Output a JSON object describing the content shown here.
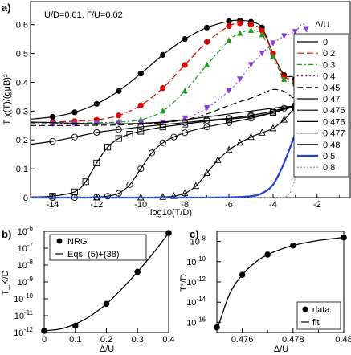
{
  "chart_data": [
    {
      "panel_label": "a)",
      "type": "line",
      "annotation": "U/D=0.01, Γ/U=0.02",
      "xlabel": "log10(T/D)",
      "ylabel": "T χ(T)/(gμB)²",
      "xlim": [
        -15,
        -0.5
      ],
      "ylim": [
        0,
        0.68
      ],
      "xticks": [
        -14,
        -12,
        -10,
        -8,
        -6,
        -4,
        -2
      ],
      "yticks": [
        0,
        0.1,
        0.2,
        0.3,
        0.4,
        0.5,
        0.6
      ],
      "legend_title": "Δ/U",
      "legend_position": "right",
      "series": [
        {
          "name": "0",
          "color": "#000000",
          "dash": "",
          "marker": "circle-filled",
          "x": [
            -15,
            -14,
            -13,
            -12,
            -11,
            -10,
            -9,
            -8,
            -7,
            -6,
            -5.5,
            -5,
            -4.5,
            -4,
            -3.5,
            -3,
            -2.5,
            -2,
            -1.5,
            -1,
            -0.5
          ],
          "y": [
            0.272,
            0.28,
            0.296,
            0.325,
            0.37,
            0.43,
            0.495,
            0.55,
            0.59,
            0.612,
            0.615,
            0.61,
            0.59,
            0.5,
            0.425,
            0.41,
            0.3,
            0.26,
            0.255,
            0.252,
            0.25
          ]
        },
        {
          "name": "0.2",
          "color": "#e00000",
          "dash": "8,4",
          "marker": "circle-filled",
          "x": [
            -15,
            -14,
            -13,
            -12,
            -11,
            -10,
            -9,
            -8,
            -7,
            -6,
            -5.5,
            -5,
            -4.5,
            -4,
            -3.5,
            -3,
            -2.5,
            -2,
            -1.5,
            -1,
            -0.5
          ],
          "y": [
            0.26,
            0.262,
            0.265,
            0.27,
            0.285,
            0.32,
            0.38,
            0.46,
            0.54,
            0.595,
            0.605,
            0.6,
            0.58,
            0.5,
            0.42,
            0.4,
            0.29,
            0.26,
            0.255,
            0.252,
            0.25
          ]
        },
        {
          "name": "0.3",
          "color": "#1a9a1a",
          "dash": "6,3,2,3",
          "marker": "triangle-filled",
          "x": [
            -15,
            -14,
            -13,
            -12,
            -11,
            -10,
            -9,
            -8,
            -7,
            -6,
            -5.5,
            -5,
            -4.5,
            -4,
            -3.5,
            -3,
            -2.5,
            -2,
            -1.5,
            -1,
            -0.5
          ],
          "y": [
            0.257,
            0.257,
            0.258,
            0.26,
            0.262,
            0.27,
            0.3,
            0.37,
            0.46,
            0.545,
            0.57,
            0.58,
            0.565,
            0.49,
            0.41,
            0.395,
            0.29,
            0.26,
            0.255,
            0.252,
            0.25
          ]
        },
        {
          "name": "0.4",
          "color": "#8a3ad8",
          "dash": "2,3",
          "marker": "triangle-down-filled",
          "x": [
            -15,
            -14,
            -13,
            -12,
            -11,
            -10,
            -9,
            -8,
            -7,
            -6,
            -5.5,
            -5,
            -4.5,
            -4,
            -3.5,
            -3,
            -2.5,
            -2,
            -1.5,
            -1,
            -0.5
          ],
          "y": [
            0.255,
            0.255,
            0.255,
            0.256,
            0.256,
            0.257,
            0.26,
            0.275,
            0.31,
            0.37,
            0.41,
            0.46,
            0.5,
            0.535,
            0.56,
            0.575,
            0.585,
            0.3,
            0.262,
            0.255,
            0.252
          ]
        },
        {
          "name": "0.45",
          "color": "#000000",
          "dash": "7,4",
          "marker": "",
          "x": [
            -15,
            -14,
            -13,
            -12,
            -11,
            -10,
            -9,
            -8,
            -7,
            -6,
            -5,
            -4.5,
            -4,
            -3.5,
            -3,
            -2.5,
            -2,
            -1.5,
            -1,
            -0.5
          ],
          "y": [
            0.25,
            0.25,
            0.25,
            0.251,
            0.252,
            0.255,
            0.26,
            0.27,
            0.29,
            0.32,
            0.345,
            0.36,
            0.375,
            0.368,
            0.34,
            0.3,
            0.27,
            0.258,
            0.253,
            0.25
          ]
        },
        {
          "name": "0.47",
          "color": "#000000",
          "dash": "",
          "marker": "",
          "x": [
            -15,
            -14,
            -13,
            -12,
            -11,
            -10,
            -9,
            -8,
            -7,
            -6,
            -5,
            -4,
            -3.5,
            -3,
            -2.5,
            -2,
            -1.5,
            -1,
            -0.5
          ],
          "y": [
            0.262,
            0.26,
            0.258,
            0.256,
            0.256,
            0.258,
            0.262,
            0.27,
            0.28,
            0.29,
            0.3,
            0.31,
            0.315,
            0.315,
            0.3,
            0.27,
            0.258,
            0.253,
            0.25
          ]
        },
        {
          "name": "0.475",
          "color": "#000000",
          "dash": "",
          "marker": "circle-open",
          "x": [
            -15,
            -14,
            -13,
            -12,
            -11,
            -10,
            -9,
            -8,
            -7,
            -6,
            -5,
            -4,
            -3.5,
            -3,
            -2.5,
            -2,
            -1.5,
            -1,
            -0.5
          ],
          "y": [
            0.185,
            0.195,
            0.21,
            0.226,
            0.236,
            0.245,
            0.253,
            0.26,
            0.268,
            0.275,
            0.285,
            0.3,
            0.31,
            0.315,
            0.305,
            0.27,
            0.258,
            0.253,
            0.25
          ]
        },
        {
          "name": "0.476",
          "color": "#000000",
          "dash": "",
          "marker": "square-open",
          "x": [
            -15,
            -14,
            -13,
            -12.5,
            -12,
            -11.5,
            -11,
            -10.5,
            -10,
            -9,
            -8,
            -7,
            -6,
            -5,
            -4,
            -3,
            -2.5,
            -2,
            -1.5,
            -1,
            -0.5
          ],
          "y": [
            0.002,
            0.005,
            0.02,
            0.055,
            0.12,
            0.175,
            0.205,
            0.22,
            0.23,
            0.245,
            0.255,
            0.265,
            0.272,
            0.28,
            0.295,
            0.315,
            0.31,
            0.27,
            0.258,
            0.253,
            0.25
          ]
        },
        {
          "name": "0.477",
          "color": "#000000",
          "dash": "",
          "marker": "circle-open",
          "x": [
            -15,
            -14,
            -13,
            -12,
            -11.5,
            -11,
            -10.5,
            -10,
            -9.5,
            -9,
            -8.5,
            -8,
            -7,
            -6,
            -5,
            -4,
            -3,
            -2.5,
            -2,
            -1.5,
            -1,
            -0.5
          ],
          "y": [
            0,
            0,
            0,
            0.002,
            0.005,
            0.015,
            0.045,
            0.1,
            0.155,
            0.19,
            0.21,
            0.225,
            0.245,
            0.26,
            0.275,
            0.295,
            0.32,
            0.315,
            0.27,
            0.258,
            0.253,
            0.25
          ]
        },
        {
          "name": "0.48",
          "color": "#000000",
          "dash": "",
          "marker": "triangle-open",
          "x": [
            -15,
            -12,
            -10,
            -9,
            -8.5,
            -8,
            -7.5,
            -7,
            -6.5,
            -6,
            -5.5,
            -5,
            -4.5,
            -4,
            -3.5,
            -3,
            -2.5,
            -2,
            -1.5,
            -1,
            -0.5
          ],
          "y": [
            0,
            0,
            0,
            0.002,
            0.005,
            0.015,
            0.04,
            0.085,
            0.13,
            0.165,
            0.19,
            0.21,
            0.225,
            0.24,
            0.27,
            0.31,
            0.32,
            0.27,
            0.258,
            0.253,
            0.25
          ]
        },
        {
          "name": "0.5",
          "color": "#1f3fd6",
          "dash": "",
          "marker": "",
          "x": [
            -15,
            -8,
            -6,
            -5,
            -4.5,
            -4,
            -3.5,
            -3,
            -2.7,
            -2.4,
            -2,
            -1.5,
            -1,
            -0.5
          ],
          "y": [
            0,
            0,
            0.001,
            0.005,
            0.015,
            0.045,
            0.12,
            0.22,
            0.275,
            0.29,
            0.27,
            0.258,
            0.253,
            0.25
          ]
        },
        {
          "name": "0.8",
          "color": "#8a8a8a",
          "dash": "2,2",
          "marker": "",
          "x": [
            -15,
            -4,
            -3.4,
            -3.1,
            -2.8,
            -2.5,
            -2.2,
            -2,
            -1.5,
            -1,
            -0.5
          ],
          "y": [
            0,
            0,
            0.005,
            0.04,
            0.14,
            0.22,
            0.255,
            0.26,
            0.257,
            0.253,
            0.25
          ]
        }
      ]
    },
    {
      "panel_label": "b)",
      "type": "line",
      "xlabel": "Δ/U",
      "ylabel": "T_K/D",
      "log_y": true,
      "xlim": [
        0,
        0.4
      ],
      "ylim_exponent": [
        -12,
        -6
      ],
      "xticks": [
        "0",
        "0.1",
        "0.2",
        "0.3",
        "0.4"
      ],
      "yticks": [
        "10^-12",
        "10^-11",
        "10^-10",
        "10^-9",
        "10^-8",
        "10^-7",
        "10^-6"
      ],
      "legend": [
        "NRG",
        "Eqs. (5)+(38)"
      ],
      "legend_position": "top-left",
      "nrg_points": {
        "x": [
          0,
          0.1,
          0.2,
          0.3,
          0.4
        ],
        "log10_y": [
          -11.9,
          -11.6,
          -10.3,
          -8.4,
          -6.1
        ]
      },
      "fit_curve": {
        "x": [
          0,
          0.05,
          0.1,
          0.15,
          0.2,
          0.25,
          0.3,
          0.35,
          0.4
        ],
        "log10_y": [
          -11.9,
          -11.8,
          -11.5,
          -11.0,
          -10.3,
          -9.4,
          -8.4,
          -7.3,
          -6.1
        ]
      }
    },
    {
      "panel_label": "c)",
      "type": "line",
      "xlabel": "Δ/U",
      "ylabel": "T*/D",
      "log_y": true,
      "xlim": [
        0.475,
        0.48
      ],
      "ylim_exponent": [
        -17,
        -7
      ],
      "xticks": [
        "0.476",
        "0.478",
        "0.48"
      ],
      "yticks": [
        "10^-16",
        "10^-14",
        "10^-12",
        "10^-10",
        "10^-8"
      ],
      "legend": [
        "data",
        "fit"
      ],
      "legend_position": "bottom-right",
      "data_points": {
        "x": [
          0.475,
          0.476,
          0.477,
          0.478,
          0.48
        ],
        "log10_y": [
          -16.5,
          -11.3,
          -9.3,
          -8.4,
          -7.6
        ]
      },
      "fit_curve": {
        "x": [
          0.475,
          0.4755,
          0.476,
          0.4765,
          0.477,
          0.4775,
          0.478,
          0.479,
          0.48
        ],
        "log10_y": [
          -16.8,
          -13.2,
          -11.3,
          -10.1,
          -9.3,
          -8.8,
          -8.4,
          -7.9,
          -7.6
        ]
      }
    }
  ]
}
